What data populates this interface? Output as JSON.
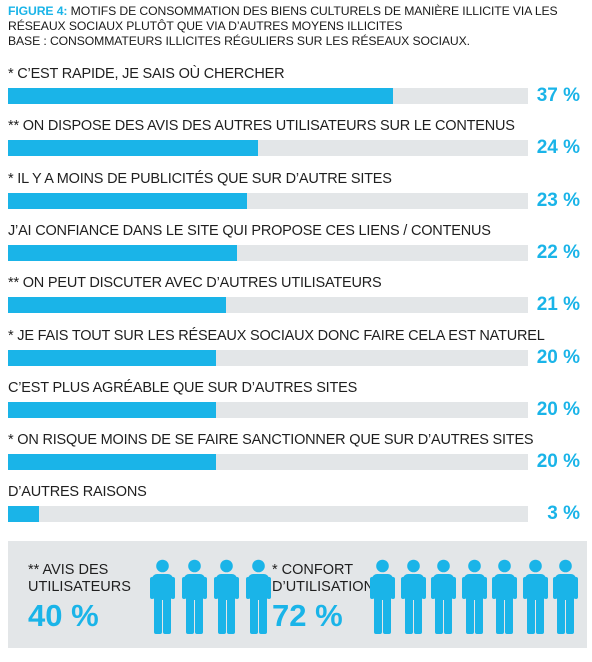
{
  "figure": {
    "label": "FIGURE 4:",
    "title": "MOTIFS DE CONSOMMATION DES BIENS CULTURELS DE MANIÈRE ILLICITE VIA LES RÉSEAUX SOCIAUX PLUTÔT QUE VIA D’AUTRES MOYENS ILLICITES",
    "base": "BASE : CONSOMMATEURS ILLICITES RÉGULIERS SUR LES RÉSEAUX SOCIAUX."
  },
  "colors": {
    "accent": "#1ab4e8",
    "track": "#e3e6e8",
    "text": "#1f1f1f"
  },
  "chart_data": {
    "type": "bar",
    "orientation": "horizontal",
    "categories": [
      "* C’EST RAPIDE, JE SAIS OÙ CHERCHER",
      "** ON DISPOSE DES AVIS DES AUTRES UTILISATEURS SUR LE CONTENUS",
      "* IL Y A MOINS DE PUBLICITÉS QUE SUR D’AUTRE SITES",
      "J’AI CONFIANCE DANS LE SITE QUI PROPOSE CES LIENS / CONTENUS",
      "** ON PEUT DISCUTER AVEC D’AUTRES UTILISATEURS",
      "* JE FAIS TOUT SUR LES RÉSEAUX SOCIAUX DONC FAIRE CELA EST NATUREL",
      "C’EST PLUS AGRÉABLE QUE SUR D’AUTRES SITES",
      "* ON RISQUE MOINS DE SE FAIRE SANCTIONNER QUE SUR D’AUTRES SITES",
      "D’AUTRES RAISONS"
    ],
    "values": [
      37,
      24,
      23,
      22,
      21,
      20,
      20,
      20,
      3
    ],
    "value_labels": [
      "37 %",
      "24 %",
      "23 %",
      "22 %",
      "21 %",
      "20 %",
      "20 %",
      "20 %",
      "3 %"
    ],
    "xlim": [
      0,
      50
    ],
    "grid": false
  },
  "summary": {
    "avis": {
      "label": "** AVIS DES UTILISATEURS",
      "value": "40 %",
      "icon": "person-icon",
      "icon_count": 4
    },
    "confort": {
      "label": "* CONFORT D’UTILISATION",
      "value": "72 %",
      "icon": "person-icon",
      "icon_count": 7
    }
  }
}
